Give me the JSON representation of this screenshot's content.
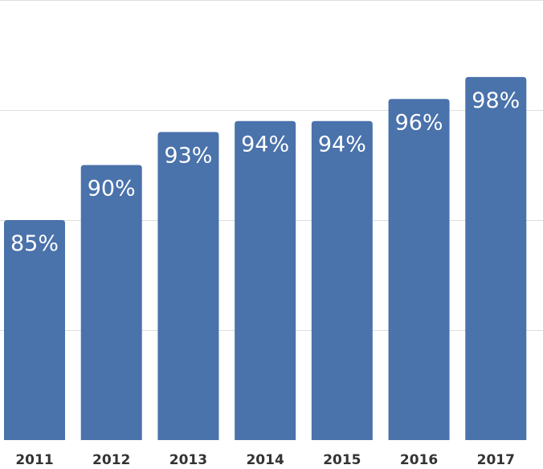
{
  "chart_data": {
    "type": "bar",
    "categories": [
      "2011",
      "2012",
      "2013",
      "2014",
      "2015",
      "2016",
      "2017"
    ],
    "values": [
      85,
      90,
      93,
      94,
      94,
      96,
      98
    ],
    "data_labels": [
      "85%",
      "90%",
      "93%",
      "94%",
      "94%",
      "96%",
      "98%"
    ],
    "ylim": [
      65,
      105
    ],
    "grid": true,
    "bar_color": "#4a72ab",
    "title": "",
    "xlabel": "",
    "ylabel": ""
  }
}
